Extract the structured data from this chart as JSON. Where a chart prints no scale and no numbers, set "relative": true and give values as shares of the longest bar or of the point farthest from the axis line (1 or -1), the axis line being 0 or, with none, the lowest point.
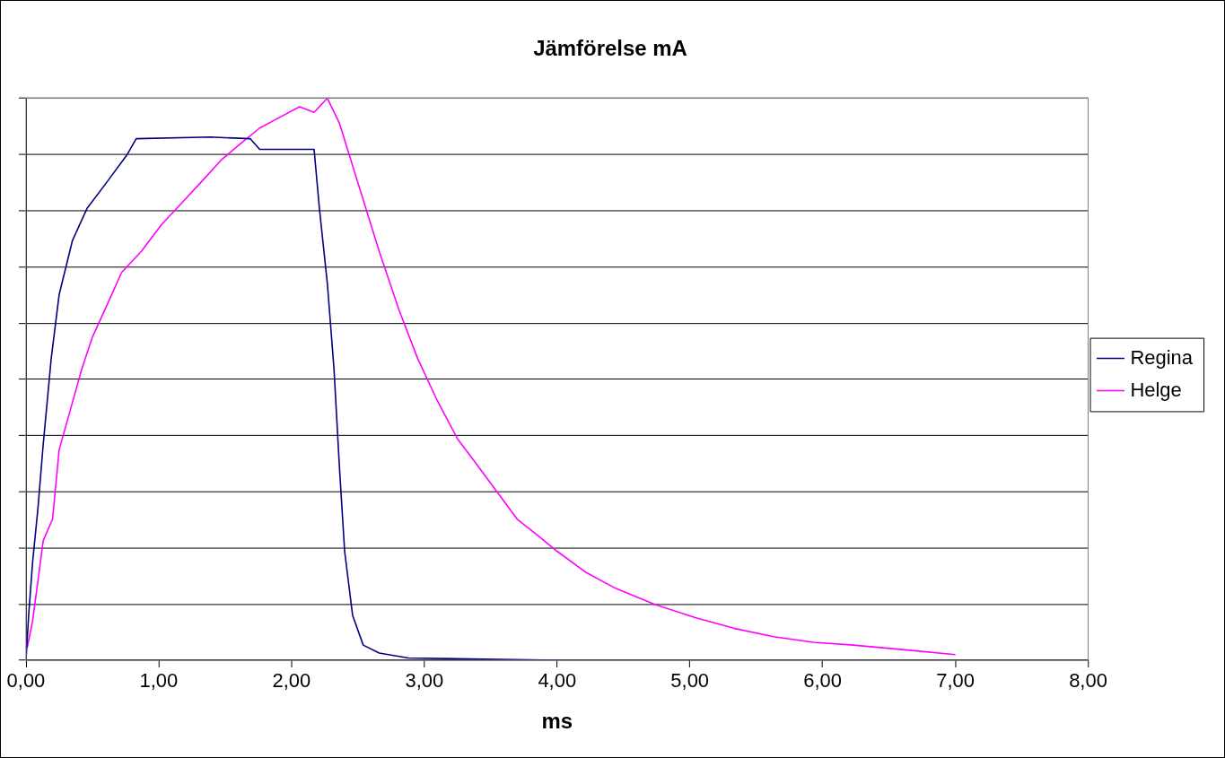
{
  "chart_data": {
    "type": "line",
    "title": "Jämförelse mA",
    "xlabel": "ms",
    "relative": true,
    "xlim": [
      0,
      8
    ],
    "xticks": [
      {
        "value": 0,
        "label": "0,00"
      },
      {
        "value": 1,
        "label": "1,00"
      },
      {
        "value": 2,
        "label": "2,00"
      },
      {
        "value": 3,
        "label": "3,00"
      },
      {
        "value": 4,
        "label": "4,00"
      },
      {
        "value": 5,
        "label": "5,00"
      },
      {
        "value": 6,
        "label": "6,00"
      },
      {
        "value": 7,
        "label": "7,00"
      },
      {
        "value": 8,
        "label": "8,00"
      }
    ],
    "grid": "y",
    "legend": "right",
    "tick_labels": "x",
    "marker": "none",
    "line_style": "solid",
    "series": [
      {
        "name": "Regina",
        "color": "#000080",
        "x": [
          0,
          0.02,
          0.05,
          0.09,
          0.13,
          0.19,
          0.25,
          0.35,
          0.46,
          0.61,
          0.76,
          0.83,
          1.39,
          1.69,
          1.76,
          2.17,
          2.21,
          2.27,
          2.32,
          2.36,
          2.4,
          2.46,
          2.54,
          2.66,
          2.88,
          4.0
        ],
        "values": [
          0,
          0.08,
          0.175,
          0.27,
          0.385,
          0.537,
          0.651,
          0.747,
          0.804,
          0.851,
          0.899,
          0.928,
          0.931,
          0.928,
          0.909,
          0.909,
          0.804,
          0.67,
          0.518,
          0.347,
          0.194,
          0.08,
          0.027,
          0.013,
          0.004,
          0
        ]
      },
      {
        "name": "Helge",
        "color": "#ff00ff",
        "x": [
          0.01,
          0.05,
          0.13,
          0.2,
          0.25,
          0.33,
          0.42,
          0.5,
          0.61,
          0.72,
          0.87,
          1.02,
          1.17,
          1.32,
          1.47,
          1.61,
          1.76,
          1.91,
          2.06,
          2.17,
          2.27,
          2.36,
          2.51,
          2.66,
          2.81,
          2.95,
          3.1,
          3.25,
          3.4,
          3.55,
          3.7,
          3.85,
          4.0,
          4.22,
          4.44,
          4.74,
          5.04,
          5.33,
          5.63,
          5.93,
          6.23,
          6.6,
          7.0
        ],
        "values": [
          0.023,
          0.07,
          0.213,
          0.251,
          0.375,
          0.442,
          0.518,
          0.575,
          0.632,
          0.69,
          0.728,
          0.775,
          0.813,
          0.851,
          0.89,
          0.918,
          0.947,
          0.966,
          0.985,
          0.975,
          1,
          0.956,
          0.842,
          0.728,
          0.623,
          0.537,
          0.461,
          0.394,
          0.347,
          0.299,
          0.251,
          0.223,
          0.194,
          0.156,
          0.128,
          0.099,
          0.076,
          0.057,
          0.042,
          0.032,
          0.027,
          0.019,
          0.01
        ]
      }
    ]
  }
}
